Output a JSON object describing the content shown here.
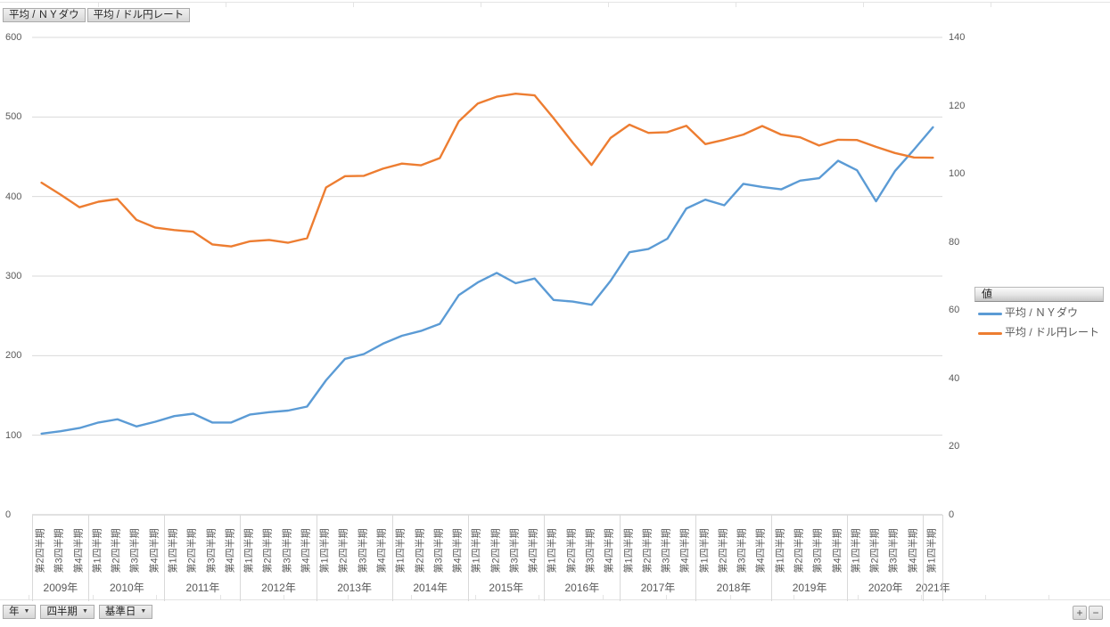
{
  "field_buttons": [
    {
      "label": "平均 / ＮＹダウ"
    },
    {
      "label": "平均 / ドル円レート"
    }
  ],
  "filter_buttons": [
    {
      "label": "年",
      "arrow": "▼"
    },
    {
      "label": "四半期",
      "arrow": "▼"
    },
    {
      "label": "基準日",
      "arrow": "▼"
    }
  ],
  "zoom_buttons": {
    "plus": "+",
    "minus": "−"
  },
  "legend": {
    "header": "値",
    "items": [
      {
        "label": "平均 / ＮＹダウ",
        "color": "#5B9BD5"
      },
      {
        "label": "平均 / ドル円レート",
        "color": "#ED7D31"
      }
    ]
  },
  "colors": {
    "series_blue": "#5B9BD5",
    "series_orange": "#ED7D31",
    "gridline": "#d9d9d9",
    "axis_line": "#c3c3c3",
    "axis_text": "#595959"
  },
  "chart_data": {
    "type": "line",
    "title": "",
    "left_axis": {
      "min": 0,
      "max": 600,
      "step": 100,
      "ticks": [
        600,
        500,
        400,
        300,
        200,
        100,
        0
      ]
    },
    "right_axis": {
      "min": 0,
      "max": 140,
      "step": 20,
      "ticks": [
        140,
        120,
        100,
        80,
        60,
        40,
        20,
        0
      ]
    },
    "grid": true,
    "legend_position": "right",
    "x_groups": [
      {
        "year": "2009年",
        "quarters": [
          "第2四半期",
          "第3四半期",
          "第4四半期"
        ]
      },
      {
        "year": "2010年",
        "quarters": [
          "第1四半期",
          "第2四半期",
          "第3四半期",
          "第4四半期"
        ]
      },
      {
        "year": "2011年",
        "quarters": [
          "第1四半期",
          "第2四半期",
          "第3四半期",
          "第4四半期"
        ]
      },
      {
        "year": "2012年",
        "quarters": [
          "第1四半期",
          "第2四半期",
          "第3四半期",
          "第4四半期"
        ]
      },
      {
        "year": "2013年",
        "quarters": [
          "第1四半期",
          "第2四半期",
          "第3四半期",
          "第4四半期"
        ]
      },
      {
        "year": "2014年",
        "quarters": [
          "第1四半期",
          "第2四半期",
          "第3四半期",
          "第4四半期"
        ]
      },
      {
        "year": "2015年",
        "quarters": [
          "第1四半期",
          "第2四半期",
          "第3四半期",
          "第4四半期"
        ]
      },
      {
        "year": "2016年",
        "quarters": [
          "第1四半期",
          "第2四半期",
          "第3四半期",
          "第4四半期"
        ]
      },
      {
        "year": "2017年",
        "quarters": [
          "第1四半期",
          "第2四半期",
          "第3四半期",
          "第4四半期"
        ]
      },
      {
        "year": "2018年",
        "quarters": [
          "第1四半期",
          "第2四半期",
          "第3四半期",
          "第4四半期"
        ]
      },
      {
        "year": "2019年",
        "quarters": [
          "第1四半期",
          "第2四半期",
          "第3四半期",
          "第4四半期"
        ]
      },
      {
        "year": "2020年",
        "quarters": [
          "第1四半期",
          "第2四半期",
          "第3四半期",
          "第4四半期"
        ]
      },
      {
        "year": "2021年",
        "quarters": [
          "第1四半期"
        ]
      }
    ],
    "series": [
      {
        "name": "平均 / ＮＹダウ",
        "axis": "left",
        "color": "#5B9BD5",
        "values": [
          102,
          105,
          109,
          116,
          120,
          111,
          117,
          124,
          127,
          116,
          116,
          126,
          129,
          131,
          136,
          169,
          196,
          202,
          215,
          225,
          231,
          240,
          276,
          292,
          304,
          291,
          297,
          270,
          268,
          264,
          294,
          330,
          334,
          347,
          385,
          396,
          389,
          416,
          412,
          409,
          420,
          423,
          445,
          433,
          394,
          432,
          459,
          487
        ]
      },
      {
        "name": "平均 / ドル円レート",
        "axis": "right",
        "color": "#ED7D31",
        "values": [
          97.4,
          93.9,
          90.2,
          91.8,
          92.6,
          86.5,
          84.2,
          83.5,
          83.0,
          79.3,
          78.7,
          80.2,
          80.6,
          79.8,
          81.1,
          96.0,
          99.3,
          99.4,
          101.5,
          103.0,
          102.5,
          104.6,
          115.4,
          120.6,
          122.6,
          123.5,
          123.0,
          116.3,
          109.2,
          102.6,
          110.5,
          114.4,
          112.0,
          112.2,
          114.1,
          108.7,
          110.0,
          111.5,
          114.0,
          111.5,
          110.7,
          108.3,
          110.0,
          109.9,
          107.9,
          106.1,
          104.8,
          104.7
        ]
      }
    ]
  }
}
